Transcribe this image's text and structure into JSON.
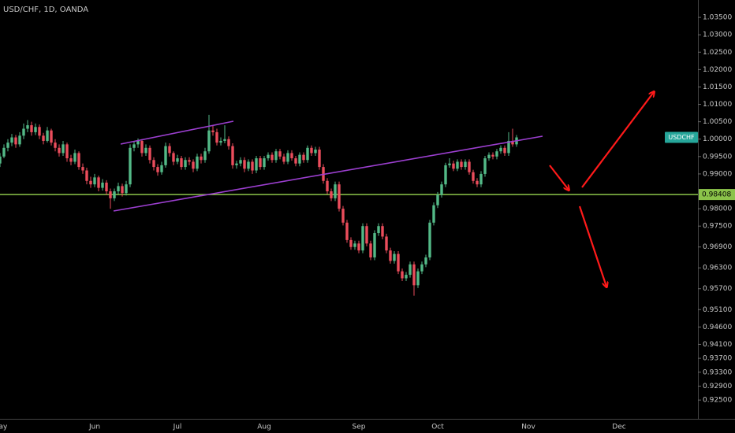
{
  "chart_data": {
    "type": "candlestick",
    "title": "USD/CHF, 1D, OANDA",
    "symbol_tag": "USDCHF",
    "up_color": "#53b987",
    "down_color": "#eb4d5c",
    "hline": {
      "value": 0.98408,
      "label": "0.98408",
      "color": "#8bc34a"
    },
    "ylim": [
      0.9196,
      1.04
    ],
    "yticks": [
      {
        "value": 1.035,
        "label": "1.03500"
      },
      {
        "value": 1.03,
        "label": "1.03000"
      },
      {
        "value": 1.025,
        "label": "1.02500"
      },
      {
        "value": 1.02,
        "label": "1.02000"
      },
      {
        "value": 1.015,
        "label": "1.01500"
      },
      {
        "value": 1.01,
        "label": "1.01000"
      },
      {
        "value": 1.005,
        "label": "1.00500"
      },
      {
        "value": 1.0,
        "label": "1.00000"
      },
      {
        "value": 0.995,
        "label": "0.99500"
      },
      {
        "value": 0.99,
        "label": "0.99000"
      },
      {
        "value": 0.98,
        "label": "0.98000"
      },
      {
        "value": 0.975,
        "label": "0.97500"
      },
      {
        "value": 0.969,
        "label": "0.96900"
      },
      {
        "value": 0.963,
        "label": "0.96300"
      },
      {
        "value": 0.957,
        "label": "0.95700"
      },
      {
        "value": 0.951,
        "label": "0.95100"
      },
      {
        "value": 0.946,
        "label": "0.94600"
      },
      {
        "value": 0.941,
        "label": "0.94100"
      },
      {
        "value": 0.937,
        "label": "0.93700"
      },
      {
        "value": 0.933,
        "label": "0.93300"
      },
      {
        "value": 0.929,
        "label": "0.92900"
      },
      {
        "value": 0.925,
        "label": "0.92500"
      }
    ],
    "categories": [
      "May",
      null,
      null,
      null,
      null,
      null,
      null,
      null,
      null,
      null,
      null,
      null,
      null,
      null,
      null,
      null,
      null,
      null,
      null,
      null,
      null,
      null,
      null,
      null,
      "Jun",
      null,
      null,
      null,
      null,
      null,
      null,
      null,
      null,
      null,
      null,
      null,
      null,
      null,
      null,
      null,
      null,
      null,
      null,
      null,
      null,
      "Jul",
      null,
      null,
      null,
      null,
      null,
      null,
      null,
      null,
      null,
      null,
      null,
      null,
      null,
      null,
      null,
      null,
      null,
      null,
      null,
      null,
      null,
      "Aug",
      null,
      null,
      null,
      null,
      null,
      null,
      null,
      null,
      null,
      null,
      null,
      null,
      null,
      null,
      null,
      null,
      null,
      null,
      null,
      null,
      null,
      null,
      null,
      "Sep",
      null,
      null,
      null,
      null,
      null,
      null,
      null,
      null,
      null,
      null,
      null,
      null,
      null,
      null,
      null,
      null,
      null,
      null,
      null,
      "Oct",
      null,
      null,
      null,
      null,
      null,
      null,
      null,
      null,
      null,
      null,
      null,
      null,
      null,
      null,
      null,
      null,
      null,
      null,
      null,
      null,
      null,
      null,
      "Nov",
      null,
      null,
      null,
      null,
      null,
      null,
      null,
      null,
      null,
      null,
      null,
      null,
      null,
      null,
      null,
      null,
      null,
      null,
      null,
      null,
      null,
      null,
      "Dec",
      null,
      null,
      null,
      null,
      null,
      null,
      null,
      null,
      null,
      null,
      null,
      null,
      null,
      null,
      null,
      null,
      null,
      null,
      null
    ],
    "ohlc": [
      [
        0.993,
        0.996,
        0.992,
        0.995
      ],
      [
        0.995,
        0.9985,
        0.9945,
        0.9975
      ],
      [
        0.9975,
        1.0,
        0.9965,
        0.999
      ],
      [
        0.999,
        1.0015,
        0.998,
        1.0005
      ],
      [
        1.0005,
        1.0012,
        0.9975,
        0.9985
      ],
      [
        0.9985,
        1.002,
        0.9978,
        1.001
      ],
      [
        1.001,
        1.0045,
        1.0,
        1.003
      ],
      [
        1.003,
        1.0055,
        1.002,
        1.004
      ],
      [
        1.004,
        1.005,
        1.001,
        1.002
      ],
      [
        1.002,
        1.0045,
        1.0012,
        1.0035
      ],
      [
        1.0035,
        1.0042,
        1.0,
        1.001
      ],
      [
        1.001,
        1.0018,
        0.9985,
        0.9995
      ],
      [
        0.9995,
        1.0035,
        0.999,
        1.0025
      ],
      [
        1.0025,
        1.003,
        0.9982,
        0.999
      ],
      [
        0.999,
        1.0,
        0.9965,
        0.9975
      ],
      [
        0.9975,
        0.9985,
        0.995,
        0.996
      ],
      [
        0.996,
        0.9995,
        0.9952,
        0.9985
      ],
      [
        0.9985,
        0.999,
        0.9935,
        0.9945
      ],
      [
        0.9945,
        0.9955,
        0.9925,
        0.9935
      ],
      [
        0.9935,
        0.997,
        0.9928,
        0.996
      ],
      [
        0.996,
        0.9965,
        0.9912,
        0.992
      ],
      [
        0.992,
        0.993,
        0.99,
        0.991
      ],
      [
        0.991,
        0.9918,
        0.987,
        0.988
      ],
      [
        0.988,
        0.9892,
        0.986,
        0.987
      ],
      [
        0.987,
        0.99,
        0.9862,
        0.989
      ],
      [
        0.989,
        0.9895,
        0.985,
        0.986
      ],
      [
        0.986,
        0.9885,
        0.9852,
        0.9875
      ],
      [
        0.9875,
        0.9882,
        0.984,
        0.985
      ],
      [
        0.985,
        0.9858,
        0.98,
        0.983
      ],
      [
        0.983,
        0.9858,
        0.9822,
        0.985
      ],
      [
        0.985,
        0.9875,
        0.9842,
        0.9865
      ],
      [
        0.9865,
        0.9872,
        0.9835,
        0.9845
      ],
      [
        0.9845,
        0.988,
        0.9838,
        0.987
      ],
      [
        0.987,
        0.9985,
        0.9862,
        0.9975
      ],
      [
        0.9975,
        0.9995,
        0.9965,
        0.9985
      ],
      [
        0.9985,
        1.0002,
        0.9975,
        0.9995
      ],
      [
        0.9995,
        1.0,
        0.995,
        0.996
      ],
      [
        0.996,
        0.9985,
        0.9952,
        0.9975
      ],
      [
        0.9975,
        0.9982,
        0.993,
        0.994
      ],
      [
        0.994,
        0.9948,
        0.991,
        0.992
      ],
      [
        0.992,
        0.9928,
        0.9895,
        0.9905
      ],
      [
        0.9905,
        0.9935,
        0.9898,
        0.9925
      ],
      [
        0.9925,
        0.999,
        0.9918,
        0.998
      ],
      [
        0.998,
        0.9988,
        0.995,
        0.996
      ],
      [
        0.996,
        0.9965,
        0.9925,
        0.9935
      ],
      [
        0.9935,
        0.9955,
        0.9928,
        0.9945
      ],
      [
        0.9945,
        0.9952,
        0.9912,
        0.992
      ],
      [
        0.992,
        0.9948,
        0.9912,
        0.994
      ],
      [
        0.994,
        0.9948,
        0.9925,
        0.9935
      ],
      [
        0.9935,
        0.9942,
        0.9905,
        0.9915
      ],
      [
        0.9915,
        0.9958,
        0.9908,
        0.995
      ],
      [
        0.995,
        0.9958,
        0.993,
        0.994
      ],
      [
        0.994,
        0.9975,
        0.9932,
        0.9965
      ],
      [
        0.9965,
        1.007,
        0.9958,
        1.0025
      ],
      [
        1.0025,
        1.004,
        1.001,
        1.002
      ],
      [
        1.002,
        1.003,
        0.9982,
        0.999
      ],
      [
        0.999,
        1.0005,
        0.9982,
        0.9995
      ],
      [
        0.9995,
        1.004,
        0.9988,
        1.0
      ],
      [
        1.0,
        1.0008,
        0.997,
        0.998
      ],
      [
        0.998,
        0.9988,
        0.9915,
        0.9925
      ],
      [
        0.9925,
        0.9938,
        0.9915,
        0.993
      ],
      [
        0.993,
        0.9948,
        0.9922,
        0.994
      ],
      [
        0.994,
        0.9948,
        0.9905,
        0.9915
      ],
      [
        0.9915,
        0.9942,
        0.9908,
        0.9935
      ],
      [
        0.9935,
        0.9942,
        0.99,
        0.991
      ],
      [
        0.991,
        0.9952,
        0.9902,
        0.9945
      ],
      [
        0.9945,
        0.9952,
        0.9912,
        0.992
      ],
      [
        0.992,
        0.9952,
        0.9912,
        0.9945
      ],
      [
        0.9945,
        0.9962,
        0.9938,
        0.9955
      ],
      [
        0.9955,
        0.9962,
        0.9932,
        0.994
      ],
      [
        0.994,
        0.9972,
        0.9932,
        0.9965
      ],
      [
        0.9965,
        0.9972,
        0.9942,
        0.995
      ],
      [
        0.995,
        0.9958,
        0.9928,
        0.9935
      ],
      [
        0.9935,
        0.9968,
        0.9928,
        0.996
      ],
      [
        0.996,
        0.9968,
        0.9938,
        0.9945
      ],
      [
        0.9945,
        0.9952,
        0.9922,
        0.993
      ],
      [
        0.993,
        0.9962,
        0.9922,
        0.9955
      ],
      [
        0.9955,
        0.9962,
        0.9932,
        0.994
      ],
      [
        0.994,
        0.9982,
        0.9932,
        0.9975
      ],
      [
        0.9975,
        0.9982,
        0.9952,
        0.996
      ],
      [
        0.996,
        0.9978,
        0.9952,
        0.997
      ],
      [
        0.997,
        0.9978,
        0.9912,
        0.992
      ],
      [
        0.992,
        0.9928,
        0.9872,
        0.988
      ],
      [
        0.988,
        0.9888,
        0.9842,
        0.985
      ],
      [
        0.985,
        0.9858,
        0.9822,
        0.983
      ],
      [
        0.983,
        0.9878,
        0.9822,
        0.987
      ],
      [
        0.987,
        0.9878,
        0.9792,
        0.98
      ],
      [
        0.98,
        0.9808,
        0.9752,
        0.976
      ],
      [
        0.976,
        0.9768,
        0.9702,
        0.971
      ],
      [
        0.971,
        0.9718,
        0.9682,
        0.969
      ],
      [
        0.969,
        0.9708,
        0.9682,
        0.97
      ],
      [
        0.97,
        0.9708,
        0.9672,
        0.968
      ],
      [
        0.968,
        0.9758,
        0.9672,
        0.975
      ],
      [
        0.975,
        0.9758,
        0.9692,
        0.97
      ],
      [
        0.97,
        0.9708,
        0.9652,
        0.966
      ],
      [
        0.966,
        0.9738,
        0.9652,
        0.973
      ],
      [
        0.973,
        0.9758,
        0.9722,
        0.975
      ],
      [
        0.975,
        0.9758,
        0.9712,
        0.972
      ],
      [
        0.972,
        0.9728,
        0.9672,
        0.968
      ],
      [
        0.968,
        0.9688,
        0.9642,
        0.965
      ],
      [
        0.965,
        0.9678,
        0.9642,
        0.967
      ],
      [
        0.967,
        0.9678,
        0.9612,
        0.962
      ],
      [
        0.962,
        0.9628,
        0.9592,
        0.96
      ],
      [
        0.96,
        0.9618,
        0.9592,
        0.961
      ],
      [
        0.961,
        0.9648,
        0.9602,
        0.964
      ],
      [
        0.964,
        0.9648,
        0.955,
        0.958
      ],
      [
        0.958,
        0.9628,
        0.9572,
        0.962
      ],
      [
        0.962,
        0.9648,
        0.9612,
        0.964
      ],
      [
        0.964,
        0.9668,
        0.9632,
        0.966
      ],
      [
        0.966,
        0.9768,
        0.9652,
        0.976
      ],
      [
        0.976,
        0.9818,
        0.9752,
        0.981
      ],
      [
        0.981,
        0.9848,
        0.9802,
        0.984
      ],
      [
        0.984,
        0.9878,
        0.9832,
        0.987
      ],
      [
        0.987,
        0.9932,
        0.9862,
        0.9925
      ],
      [
        0.9925,
        0.9945,
        0.9918,
        0.993
      ],
      [
        0.993,
        0.9938,
        0.9908,
        0.9915
      ],
      [
        0.9915,
        0.9942,
        0.9908,
        0.9935
      ],
      [
        0.9935,
        0.9942,
        0.9912,
        0.992
      ],
      [
        0.992,
        0.9942,
        0.9912,
        0.9935
      ],
      [
        0.9935,
        0.9942,
        0.9898,
        0.9905
      ],
      [
        0.9905,
        0.9912,
        0.9872,
        0.988
      ],
      [
        0.988,
        0.9888,
        0.9862,
        0.987
      ],
      [
        0.987,
        0.9908,
        0.9862,
        0.99
      ],
      [
        0.99,
        0.9952,
        0.9892,
        0.9945
      ],
      [
        0.9945,
        0.9962,
        0.9938,
        0.9955
      ],
      [
        0.9955,
        0.9962,
        0.9942,
        0.995
      ],
      [
        0.995,
        0.9972,
        0.9942,
        0.9965
      ],
      [
        0.9965,
        0.9982,
        0.9958,
        0.9975
      ],
      [
        0.9975,
        0.9982,
        0.9952,
        0.996
      ],
      [
        0.996,
        1.002,
        0.9952,
        0.9995
      ],
      [
        0.9995,
        1.003,
        0.9978,
        0.9985
      ],
      [
        0.9985,
        1.0012,
        0.9978,
        1.0005
      ],
      null,
      null,
      null,
      null,
      null,
      null,
      null,
      null,
      null,
      null,
      null,
      null,
      null,
      null,
      null,
      null,
      null,
      null,
      null,
      null,
      null,
      null,
      null,
      null,
      null,
      null,
      null,
      null,
      null,
      null,
      null,
      null,
      null,
      null,
      null,
      null,
      null,
      null,
      null,
      null,
      null,
      null,
      null,
      null,
      null
    ]
  }
}
